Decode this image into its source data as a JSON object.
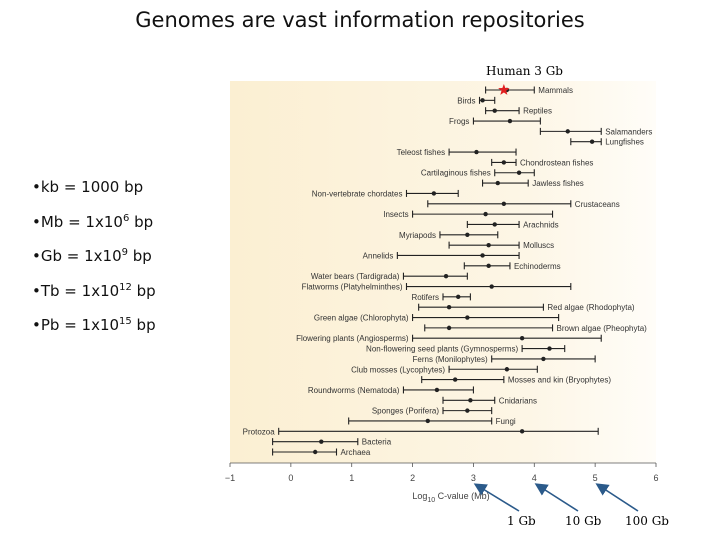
{
  "page": {
    "title": "Genomes are vast information repositories"
  },
  "definitions": [
    {
      "bullet": "•",
      "prefix": "kb = 1000 bp",
      "exp": "",
      "suffix": ""
    },
    {
      "bullet": "•",
      "prefix": "Mb = 1x10",
      "exp": "6",
      "suffix": " bp"
    },
    {
      "bullet": "•",
      "prefix": "Gb = 1x10",
      "exp": "9",
      "suffix": " bp"
    },
    {
      "bullet": "•",
      "prefix": "Tb = 1x10",
      "exp": "12",
      "suffix": " bp"
    },
    {
      "bullet": "•",
      "prefix": "Pb = 1x10",
      "exp": "15",
      "suffix": " bp"
    }
  ],
  "annotations": {
    "human": "Human 3 Gb",
    "arrows": [
      "1 Gb",
      "10 Gb",
      "100 Gb"
    ],
    "arrow_targets": [
      3,
      4,
      5
    ]
  },
  "colors": {
    "panel": "#fbefd2",
    "bar": "#222222",
    "star": "#e02020",
    "arrow": "#2b5a8a"
  },
  "chart_data": {
    "type": "range",
    "xlabel_prefix": "Log",
    "xlabel_sub": "10",
    "xlabel_suffix": " C-value (Mb)",
    "xlim": [
      -1,
      6
    ],
    "xticks": [
      -1,
      0,
      1,
      2,
      3,
      4,
      5,
      6
    ],
    "human_marker": 3.5,
    "groups": [
      {
        "name": "Mammals",
        "label_side": "right",
        "min": 3.2,
        "max": 4.0,
        "mean": 3.55
      },
      {
        "name": "Birds",
        "label_side": "left",
        "min": 3.1,
        "max": 3.35,
        "mean": 3.15
      },
      {
        "name": "Reptiles",
        "label_side": "right",
        "min": 3.2,
        "max": 3.75,
        "mean": 3.35
      },
      {
        "name": "Frogs",
        "label_side": "left",
        "min": 3.0,
        "max": 4.1,
        "mean": 3.6
      },
      {
        "name": "Salamanders",
        "label_side": "right",
        "min": 4.1,
        "max": 5.1,
        "mean": 4.55
      },
      {
        "name": "Lungfishes",
        "label_side": "right",
        "min": 4.6,
        "max": 5.1,
        "mean": 4.95
      },
      {
        "name": "Teleost fishes",
        "label_side": "left",
        "min": 2.6,
        "max": 3.7,
        "mean": 3.05
      },
      {
        "name": "Chondrostean fishes",
        "label_side": "right",
        "min": 3.3,
        "max": 3.7,
        "mean": 3.5
      },
      {
        "name": "Cartilaginous fishes",
        "label_side": "left",
        "min": 3.35,
        "max": 4.0,
        "mean": 3.75
      },
      {
        "name": "Jawless fishes",
        "label_side": "right",
        "min": 3.15,
        "max": 3.9,
        "mean": 3.4
      },
      {
        "name": "Non-vertebrate chordates",
        "label_side": "left",
        "min": 1.9,
        "max": 2.75,
        "mean": 2.35
      },
      {
        "name": "Crustaceans",
        "label_side": "right",
        "min": 2.25,
        "max": 4.6,
        "mean": 3.5
      },
      {
        "name": "Insects",
        "label_side": "left",
        "min": 2.0,
        "max": 4.3,
        "mean": 3.2
      },
      {
        "name": "Arachnids",
        "label_side": "right",
        "min": 2.9,
        "max": 3.75,
        "mean": 3.35
      },
      {
        "name": "Myriapods",
        "label_side": "left",
        "min": 2.45,
        "max": 3.4,
        "mean": 2.9
      },
      {
        "name": "Molluscs",
        "label_side": "right",
        "min": 2.6,
        "max": 3.75,
        "mean": 3.25
      },
      {
        "name": "Annelids",
        "label_side": "left",
        "min": 1.75,
        "max": 3.75,
        "mean": 3.15
      },
      {
        "name": "Echinoderms",
        "label_side": "right",
        "min": 2.85,
        "max": 3.6,
        "mean": 3.25
      },
      {
        "name": "Water bears (Tardigrada)",
        "label_side": "left",
        "min": 1.85,
        "max": 2.9,
        "mean": 2.55
      },
      {
        "name": "Flatworms (Platyhelminthes)",
        "label_side": "left",
        "min": 1.9,
        "max": 4.6,
        "mean": 3.3
      },
      {
        "name": "Rotifers",
        "label_side": "left",
        "min": 2.5,
        "max": 2.95,
        "mean": 2.75
      },
      {
        "name": "Red algae (Rhodophyta)",
        "label_side": "right",
        "min": 2.1,
        "max": 4.15,
        "mean": 2.6
      },
      {
        "name": "Green algae (Chlorophyta)",
        "label_side": "left",
        "min": 2.0,
        "max": 4.4,
        "mean": 2.9
      },
      {
        "name": "Brown algae (Pheophyta)",
        "label_side": "right",
        "min": 2.2,
        "max": 4.3,
        "mean": 2.6
      },
      {
        "name": "Flowering plants (Angiosperms)",
        "label_side": "left",
        "min": 2.0,
        "max": 5.1,
        "mean": 3.8
      },
      {
        "name": "Non-flowering seed plants (Gymnosperms)",
        "label_side": "left",
        "min": 3.8,
        "max": 4.5,
        "mean": 4.25
      },
      {
        "name": "Ferns (Monilophytes)",
        "label_side": "left",
        "min": 3.3,
        "max": 5.0,
        "mean": 4.15
      },
      {
        "name": "Club mosses (Lycophytes)",
        "label_side": "left",
        "min": 2.6,
        "max": 4.05,
        "mean": 3.55
      },
      {
        "name": "Mosses and kin (Bryophytes)",
        "label_side": "right",
        "min": 2.15,
        "max": 3.5,
        "mean": 2.7
      },
      {
        "name": "Roundworms (Nematoda)",
        "label_side": "left",
        "min": 1.85,
        "max": 3.0,
        "mean": 2.4
      },
      {
        "name": "Cnidarians",
        "label_side": "right",
        "min": 2.5,
        "max": 3.35,
        "mean": 2.95
      },
      {
        "name": "Sponges (Porifera)",
        "label_side": "left",
        "min": 2.5,
        "max": 3.3,
        "mean": 2.9
      },
      {
        "name": "Fungi",
        "label_side": "right",
        "min": 0.95,
        "max": 3.3,
        "mean": 2.25
      },
      {
        "name": "Protozoa",
        "label_side": "left",
        "min": -0.2,
        "max": 5.05,
        "mean": 3.8
      },
      {
        "name": "Bacteria",
        "label_side": "right",
        "min": -0.3,
        "max": 1.1,
        "mean": 0.5
      },
      {
        "name": "Archaea",
        "label_side": "right",
        "min": -0.3,
        "max": 0.75,
        "mean": 0.4
      }
    ]
  }
}
